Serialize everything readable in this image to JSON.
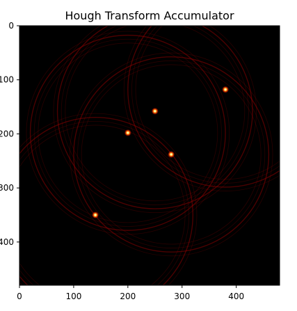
{
  "chart_data": {
    "type": "heatmap",
    "title": "Hough Transform Accumulator",
    "xlabel": "",
    "ylabel": "",
    "xlim": [
      0,
      480
    ],
    "ylim": [
      480,
      0
    ],
    "x_ticks": [
      0,
      100,
      200,
      300,
      400
    ],
    "y_ticks": [
      0,
      100,
      200,
      300,
      400
    ],
    "x_tick_labels": [
      "0",
      "100",
      "200",
      "300",
      "400"
    ],
    "y_tick_labels": [
      "0",
      "100",
      "200",
      "300",
      "400"
    ],
    "colormap": "hot",
    "background_color": "#000000",
    "grid": false,
    "peaks": [
      {
        "x": 380,
        "y": 118,
        "intensity": 1.0
      },
      {
        "x": 250,
        "y": 158,
        "intensity": 1.0
      },
      {
        "x": 200,
        "y": 198,
        "intensity": 1.0
      },
      {
        "x": 280,
        "y": 238,
        "intensity": 1.0
      },
      {
        "x": 140,
        "y": 350,
        "intensity": 1.0
      }
    ],
    "circle_radius": 180,
    "ring_color": "#8a0000"
  }
}
